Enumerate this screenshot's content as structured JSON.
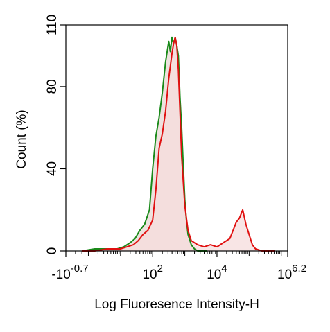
{
  "chart_data": {
    "type": "area",
    "xlabel": "Log Fluoresence Intensity-H",
    "ylabel": "Count  (%)",
    "x_scale": "log",
    "xlim_log10": [
      -0.7,
      6.2
    ],
    "ylim": [
      0,
      110
    ],
    "y_ticks": [
      {
        "value": 0,
        "label": "0"
      },
      {
        "value": 40,
        "label": "40"
      },
      {
        "value": 80,
        "label": "80"
      },
      {
        "value": 110,
        "label": "110"
      }
    ],
    "x_ticks": [
      {
        "log10": -0.7,
        "base": "-10",
        "exp": "-0.7"
      },
      {
        "log10": 2,
        "base": "10",
        "exp": "2"
      },
      {
        "log10": 4,
        "base": "10",
        "exp": "4"
      },
      {
        "log10": 6.2,
        "base": "10",
        "exp": "6.2"
      }
    ],
    "grid": false,
    "series": [
      {
        "color": "#1a8a1a",
        "fill": "#e8d8d4",
        "x_log10": [
          -0.2,
          0.2,
          0.6,
          0.9,
          1.1,
          1.3,
          1.45,
          1.6,
          1.75,
          1.9,
          2.0,
          2.1,
          2.2,
          2.3,
          2.4,
          2.5,
          2.55,
          2.6,
          2.65,
          2.7,
          2.75,
          2.8,
          2.85,
          2.9,
          2.95,
          3.0,
          3.05,
          3.1,
          3.2,
          3.3,
          3.4,
          3.5,
          3.7
        ],
        "y": [
          0,
          1,
          1,
          1,
          2,
          4,
          6,
          10,
          13,
          20,
          40,
          56,
          65,
          77,
          92,
          102,
          97,
          104,
          101,
          104,
          100,
          95,
          75,
          60,
          42,
          25,
          15,
          8,
          3,
          1,
          0,
          0,
          0
        ]
      },
      {
        "color": "#e01010",
        "fill": "#f6dcdc",
        "x_log10": [
          -0.2,
          0.2,
          0.6,
          1.0,
          1.2,
          1.4,
          1.55,
          1.7,
          1.85,
          2.0,
          2.1,
          2.2,
          2.3,
          2.4,
          2.5,
          2.6,
          2.65,
          2.7,
          2.75,
          2.8,
          2.85,
          2.9,
          3.0,
          3.1,
          3.2,
          3.4,
          3.6,
          3.8,
          4.0,
          4.2,
          4.4,
          4.5,
          4.6,
          4.7,
          4.8,
          4.9,
          5.0,
          5.1,
          5.2,
          5.4,
          5.6,
          5.8
        ],
        "y": [
          0,
          0,
          1,
          1,
          2,
          3,
          5,
          8,
          10,
          15,
          30,
          50,
          57,
          68,
          84,
          96,
          101,
          104,
          100,
          88,
          68,
          46,
          22,
          10,
          5,
          3,
          2,
          3,
          2,
          4,
          6,
          10,
          14,
          16,
          20,
          13,
          8,
          3,
          1,
          0,
          0,
          0
        ]
      }
    ]
  }
}
